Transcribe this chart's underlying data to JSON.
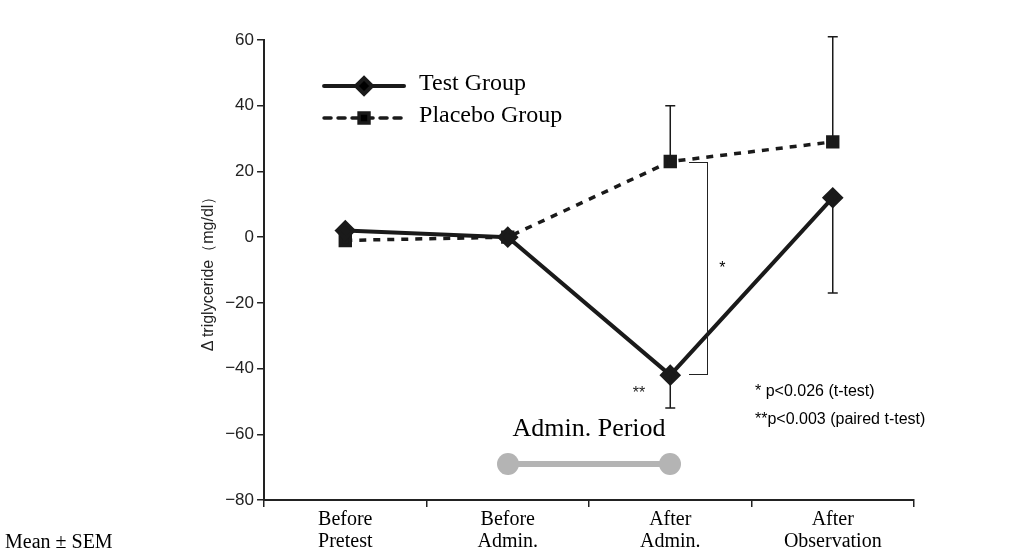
{
  "chart_data": {
    "type": "line",
    "ylabel": "Δ triglyceride（mg/dl）",
    "categories": [
      "Before Pretest",
      "Before Admin.",
      "After Admin.",
      "After Observation"
    ],
    "series": [
      {
        "name": "Test Group",
        "color": "#1a1a1a",
        "values": [
          2,
          0,
          -42,
          12
        ],
        "marker": "diamond",
        "line_style": "solid",
        "errors": [
          null,
          null,
          [
            -52,
            -42
          ],
          [
            -17,
            12
          ]
        ]
      },
      {
        "name": "Placebo Group",
        "color": "#1a1a1a",
        "values": [
          -1,
          0,
          23,
          29
        ],
        "marker": "square",
        "line_style": "dashed",
        "errors": [
          null,
          null,
          [
            23,
            40
          ],
          [
            29,
            61
          ]
        ]
      }
    ],
    "ylim": [
      -80,
      60
    ],
    "yticks": [
      -80,
      -60,
      -40,
      -20,
      0,
      20,
      40,
      60
    ],
    "grid": false,
    "legend": "top left",
    "annotations": [
      "*",
      {
        "text": "**",
        "x": "After Admin.",
        "y": -42
      },
      "Admin. Period",
      "* p<0.026 (t-test)",
      "**p<0.003 (paired t-test)",
      "Mean ± SEM"
    ]
  }
}
